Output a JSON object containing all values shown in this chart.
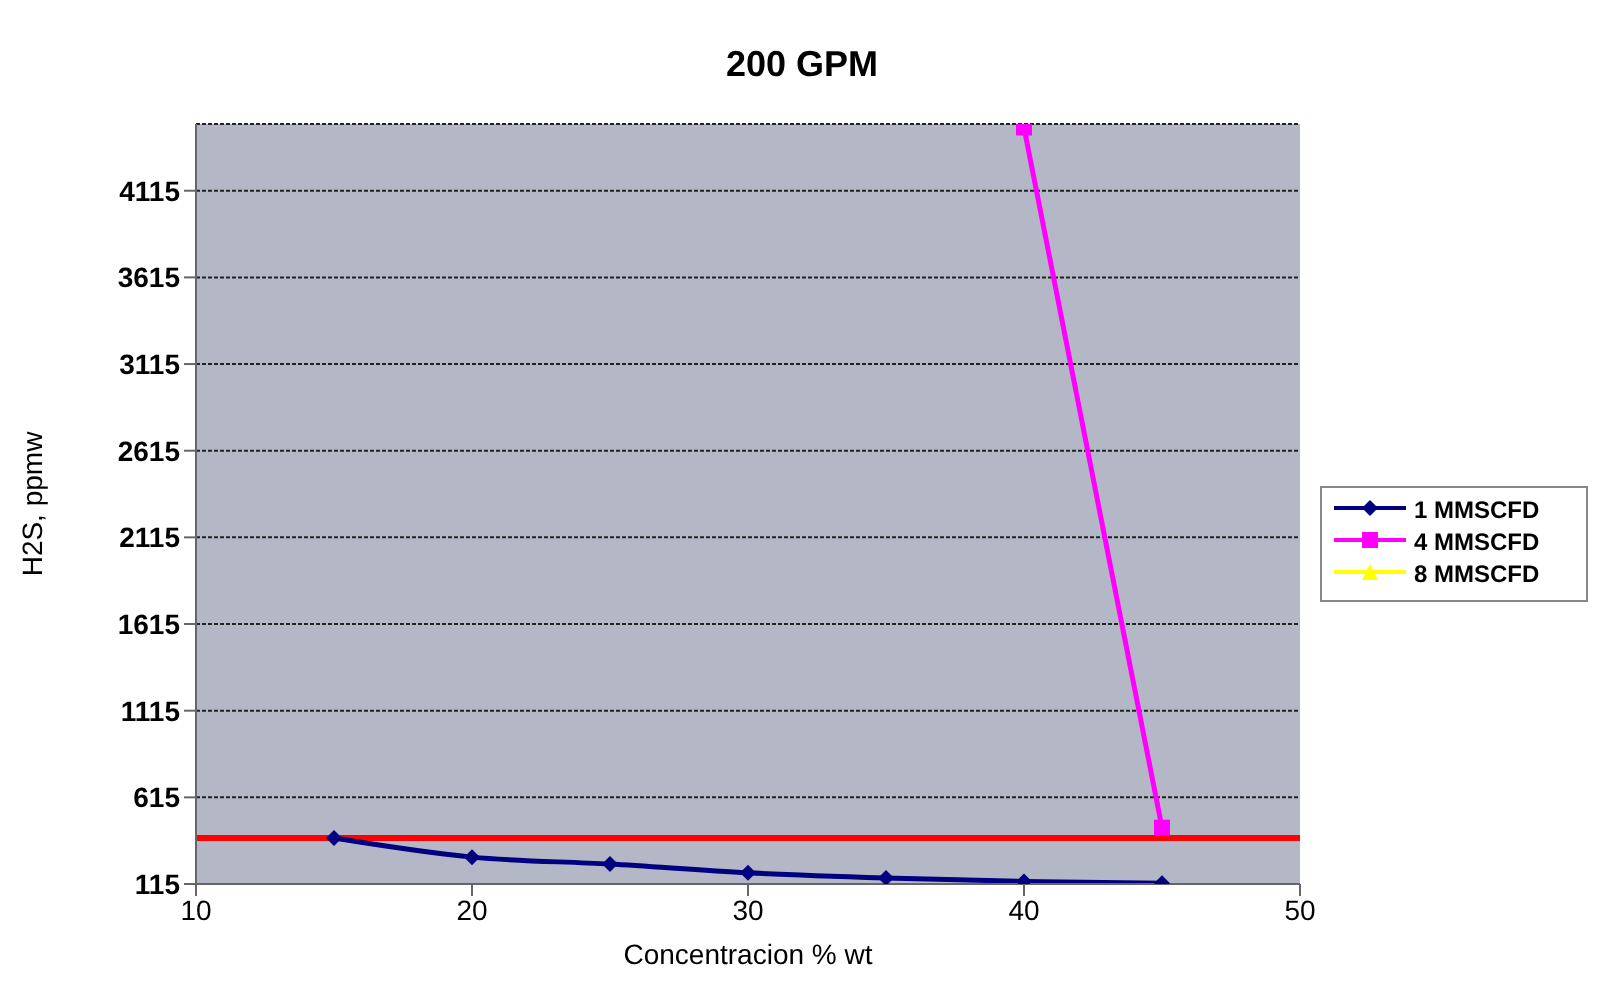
{
  "chart_data": {
    "type": "line",
    "title": "200 GPM",
    "xlabel": "Concentracion % wt",
    "ylabel": "H2S, ppmw",
    "xlim": [
      10,
      50
    ],
    "xticks": [
      10,
      20,
      30,
      40,
      50
    ],
    "ylim": [
      115,
      4500
    ],
    "yticks": [
      115,
      615,
      1115,
      1615,
      2115,
      2615,
      3115,
      3615,
      4115
    ],
    "grid": "y",
    "legend": "right",
    "series": [
      {
        "name": "1 MMSCFD",
        "color": "#000080",
        "marker": "diamond",
        "x": [
          15,
          20,
          25,
          30,
          35,
          40,
          45
        ],
        "values": [
          380,
          270,
          230,
          180,
          150,
          130,
          120
        ]
      },
      {
        "name": "4 MMSCFD",
        "color": "#ff00ff",
        "marker": "square",
        "x": [
          40,
          45
        ],
        "values": [
          4480,
          440
        ]
      },
      {
        "name": "8 MMSCFD",
        "color": "#ffff00",
        "marker": "triangle"
      }
    ],
    "ref_lines": [
      {
        "axis": "y",
        "value": 380,
        "color": "#ff0000"
      }
    ]
  }
}
